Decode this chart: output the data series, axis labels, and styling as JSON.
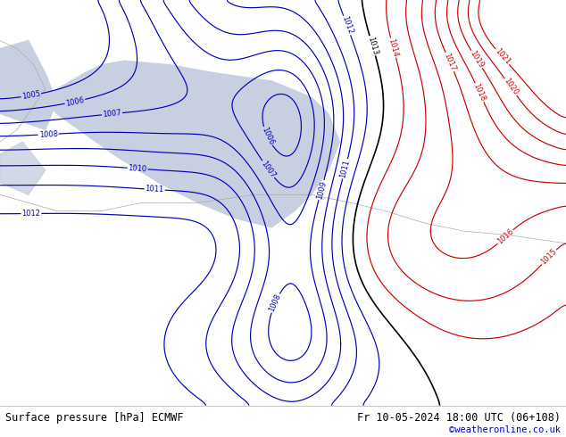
{
  "title_left": "Surface pressure [hPa] ECMWF",
  "title_right": "Fr 10-05-2024 18:00 UTC (06+108)",
  "watermark": "©weatheronline.co.uk",
  "bg_color": "#b5d97a",
  "sea_color": "#c8cfe0",
  "blue_color": "#0000bb",
  "red_color": "#cc0000",
  "black_color": "#000000",
  "figsize": [
    6.34,
    4.9
  ],
  "dpi": 100,
  "footer_text_color": "#000000",
  "watermark_color": "#0000cc"
}
